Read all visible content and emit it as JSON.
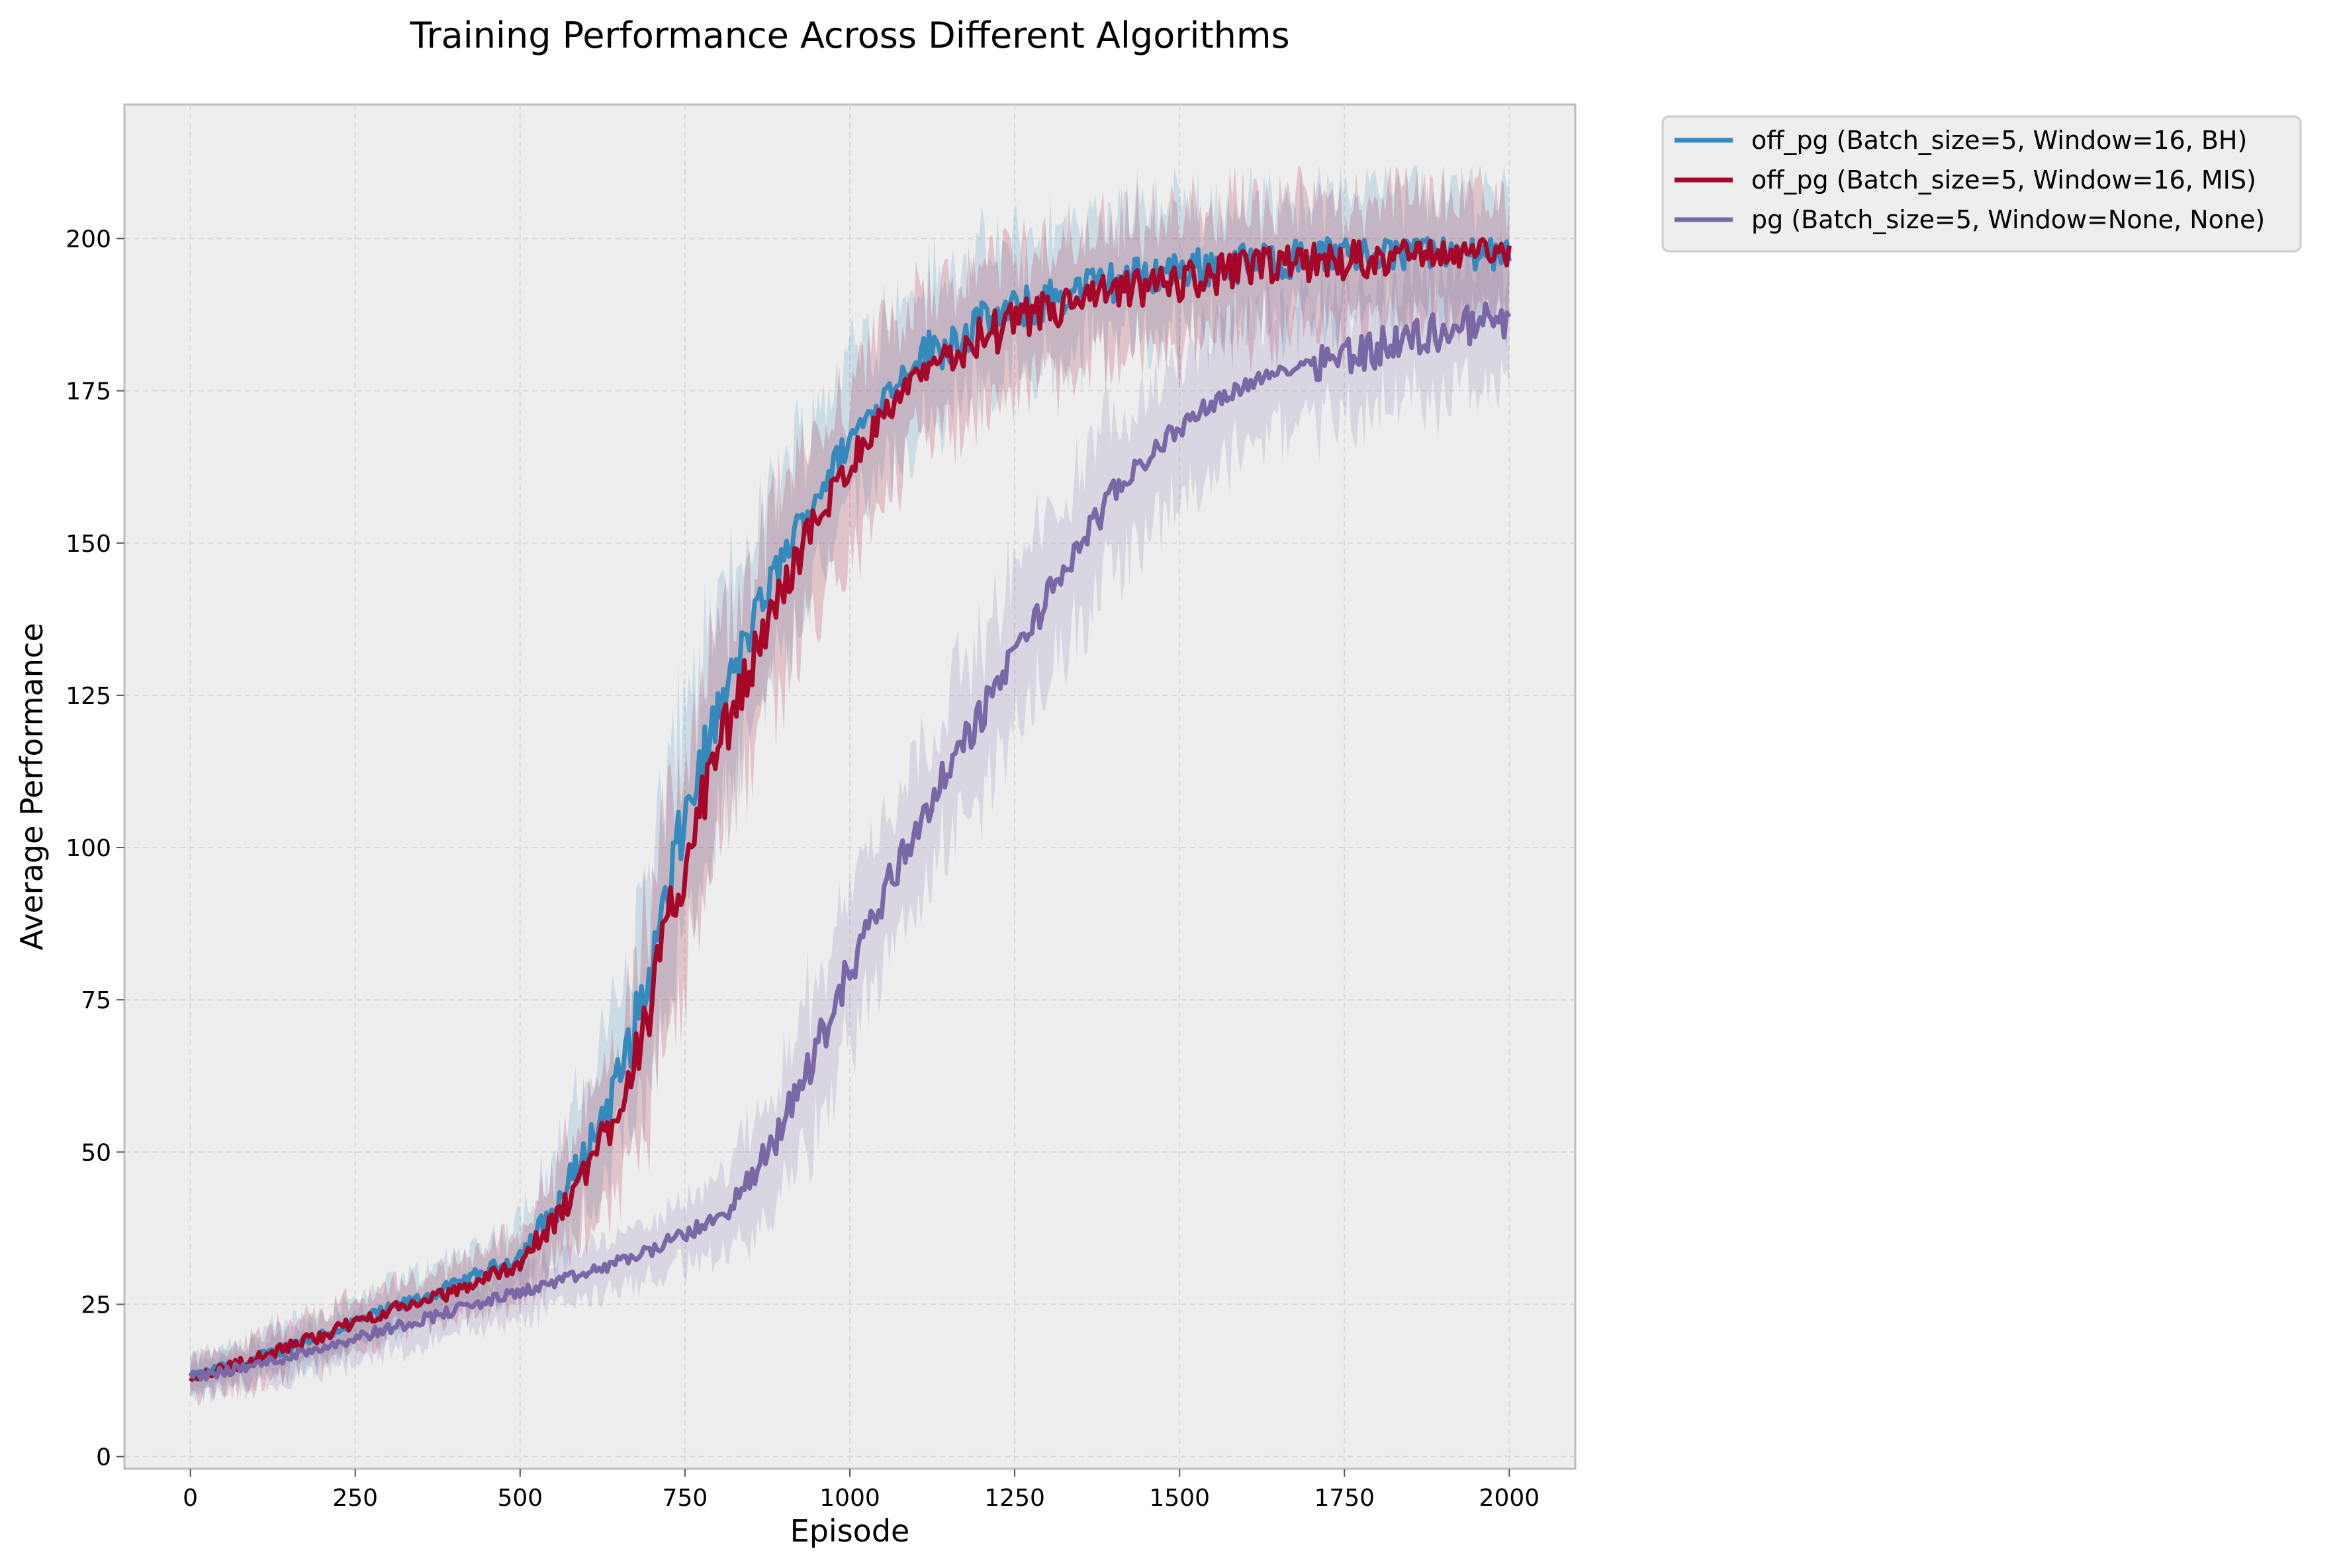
{
  "chart_data": {
    "type": "line",
    "title": "Training Performance Across Different Algorithms",
    "xlabel": "Episode",
    "ylabel": "Average Performance",
    "xlim": [
      -100,
      2100
    ],
    "ylim": [
      -2,
      222
    ],
    "xticks": [
      0,
      250,
      500,
      750,
      1000,
      1250,
      1500,
      1750,
      2000
    ],
    "yticks": [
      0,
      25,
      50,
      75,
      100,
      125,
      150,
      175,
      200
    ],
    "grid": true,
    "legend": "outside-top-right",
    "series": [
      {
        "name": "off_pg (Batch_size=5, Window=16, BH)",
        "color": "#348abd",
        "shaded_band": true,
        "x": [
          0,
          100,
          200,
          300,
          400,
          500,
          550,
          600,
          650,
          700,
          750,
          800,
          850,
          900,
          950,
          1000,
          1050,
          1100,
          1200,
          1300,
          1400,
          1500,
          1600,
          1700,
          1800,
          1900,
          2000
        ],
        "y": [
          13,
          16,
          20,
          24,
          28,
          33,
          40,
          50,
          62,
          80,
          105,
          122,
          136,
          148,
          158,
          167,
          174,
          180,
          186,
          190,
          193,
          195,
          196,
          197,
          198,
          198,
          198
        ]
      },
      {
        "name": "off_pg (Batch_size=5, Window=16, MIS)",
        "color": "#a60628",
        "shaded_band": true,
        "x": [
          0,
          100,
          200,
          300,
          400,
          500,
          550,
          600,
          650,
          700,
          750,
          800,
          850,
          900,
          950,
          1000,
          1050,
          1100,
          1200,
          1300,
          1400,
          1500,
          1600,
          1700,
          1800,
          1900,
          2000
        ],
        "y": [
          13,
          16,
          20,
          24,
          27,
          32,
          38,
          47,
          58,
          75,
          98,
          116,
          130,
          143,
          154,
          163,
          171,
          177,
          184,
          188,
          191,
          193,
          195,
          196,
          197,
          198,
          198
        ]
      },
      {
        "name": "pg (Batch_size=5, Window=None, None)",
        "color": "#7a68a6",
        "shaded_band": true,
        "x": [
          0,
          100,
          200,
          300,
          400,
          500,
          600,
          700,
          800,
          850,
          900,
          950,
          1000,
          1050,
          1100,
          1150,
          1200,
          1250,
          1300,
          1350,
          1400,
          1450,
          1500,
          1550,
          1600,
          1700,
          1800,
          1900,
          2000
        ],
        "y": [
          13,
          15,
          18,
          21,
          24,
          27,
          30,
          34,
          39,
          45,
          55,
          67,
          80,
          92,
          103,
          113,
          122,
          132,
          141,
          150,
          158,
          164,
          169,
          173,
          176,
          180,
          182,
          185,
          187
        ]
      }
    ]
  }
}
